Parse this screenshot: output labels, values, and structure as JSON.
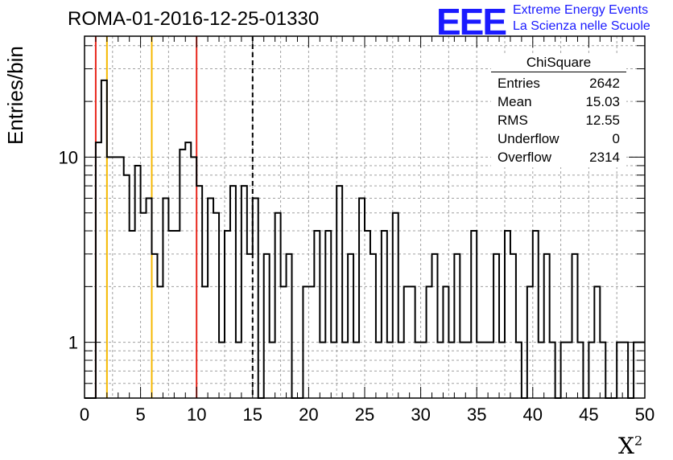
{
  "header": {
    "title": "ROMA-01-2016-12-25-01330",
    "logo_text": "EEE",
    "logo_line1": "Extreme Energy Events",
    "logo_line2": "La Scienza nelle Scuole"
  },
  "stats_box": {
    "title": "ChiSquare",
    "rows": [
      {
        "key": "Entries",
        "value": "2642"
      },
      {
        "key": "Mean",
        "value": "15.03"
      },
      {
        "key": "RMS",
        "value": "12.55"
      },
      {
        "key": "Underflow",
        "value": "0"
      },
      {
        "key": "Overflow",
        "value": "2314"
      }
    ]
  },
  "chart_data": {
    "type": "bar",
    "style": "step-histogram",
    "xlabel": "X",
    "xlabel_superscript": "2",
    "ylabel": "Entries/bin",
    "xlim": [
      0,
      50
    ],
    "ylim": [
      0.5,
      45
    ],
    "yscale": "log",
    "grid": true,
    "bin_width": 0.5,
    "x_ticks": [
      0,
      5,
      10,
      15,
      20,
      25,
      30,
      35,
      40,
      45,
      50
    ],
    "y_ticks": [
      1,
      10
    ],
    "values": [
      0,
      0,
      12,
      26,
      10,
      10,
      10,
      8,
      4,
      9,
      5,
      6,
      3,
      2,
      6,
      4,
      4,
      11,
      12,
      10,
      7,
      2,
      6,
      5,
      1,
      4,
      7,
      1,
      7,
      3,
      6,
      0,
      3,
      1,
      5,
      2,
      3,
      0,
      0,
      2,
      2,
      4,
      1,
      4,
      1,
      7,
      1,
      3,
      1,
      6,
      4,
      3,
      1,
      4,
      1,
      5,
      1,
      2,
      2,
      1,
      1,
      2,
      3,
      1,
      2,
      1,
      3,
      1,
      1,
      4,
      1,
      1,
      1,
      3,
      1,
      4,
      3,
      1,
      0,
      2,
      4,
      1,
      3,
      1,
      0,
      1,
      1,
      3,
      1,
      0,
      1,
      2,
      1,
      0,
      0,
      1,
      1,
      0,
      1,
      1
    ],
    "vertical_lines": [
      {
        "x": 1,
        "color": "#e8261c",
        "style": "solid"
      },
      {
        "x": 2,
        "color": "#f5b800",
        "style": "solid"
      },
      {
        "x": 6,
        "color": "#f5b800",
        "style": "solid"
      },
      {
        "x": 10,
        "color": "#e8261c",
        "style": "solid"
      },
      {
        "x": 15,
        "color": "#000000",
        "style": "dashed"
      }
    ]
  }
}
